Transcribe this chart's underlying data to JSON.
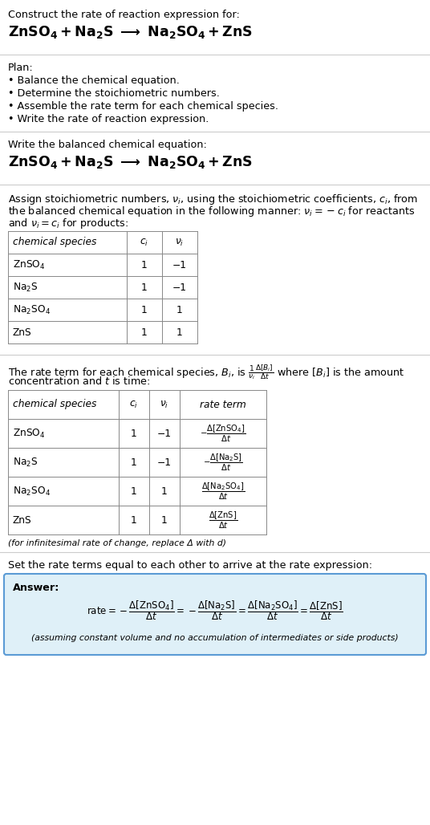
{
  "bg_color": "#ffffff",
  "title_line1": "Construct the rate of reaction expression for:",
  "eq_display": "ZnSO_4 + Na_2S \\longrightarrow Na_2SO_4 + ZnS",
  "plan_header": "Plan:",
  "plan_bullets": [
    "• Balance the chemical equation.",
    "• Determine the stoichiometric numbers.",
    "• Assemble the rate term for each chemical species.",
    "• Write the rate of reaction expression."
  ],
  "balanced_header": "Write the balanced chemical equation:",
  "stoich_para": "Assign stoichiometric numbers, $\\nu_i$, using the stoichiometric coefficients, $c_i$, from the balanced chemical equation in the following manner: $\\nu_i = -c_i$ for reactants and $\\nu_i = c_i$ for products:",
  "table1_species": [
    "$\\mathregular{ZnSO_4}$",
    "$\\mathregular{Na_2S}$",
    "$\\mathregular{Na_2SO_4}$",
    "ZnS"
  ],
  "table1_ci": [
    "1",
    "1",
    "1",
    "1"
  ],
  "table1_vi": [
    "−1",
    "−1",
    "1",
    "1"
  ],
  "rate_para_1": "The rate term for each chemical species, $B_i$, is $\\dfrac{1}{\\nu_i}\\dfrac{\\Delta[B_i]}{\\Delta t}$ where $[B_i]$ is the amount",
  "rate_para_2": "concentration and $t$ is time:",
  "table2_species": [
    "$\\mathregular{ZnSO_4}$",
    "$\\mathregular{Na_2S}$",
    "$\\mathregular{Na_2SO_4}$",
    "ZnS"
  ],
  "table2_ci": [
    "1",
    "1",
    "1",
    "1"
  ],
  "table2_vi": [
    "−1",
    "−1",
    "1",
    "1"
  ],
  "table2_rate": [
    "$-\\dfrac{\\Delta[\\mathrm{ZnSO_4}]}{\\Delta t}$",
    "$-\\dfrac{\\Delta[\\mathrm{Na_2S}]}{\\Delta t}$",
    "$\\dfrac{\\Delta[\\mathrm{Na_2SO_4}]}{\\Delta t}$",
    "$\\dfrac{\\Delta[\\mathrm{ZnS}]}{\\Delta t}$"
  ],
  "infinitesimal_note": "(for infinitesimal rate of change, replace Δ with d)",
  "set_equal_text": "Set the rate terms equal to each other to arrive at the rate expression:",
  "answer_label": "Answer:",
  "answer_box_bg": "#dff0f8",
  "answer_box_border": "#5b9bd5",
  "rate_expr": "$\\mathrm{rate} = -\\dfrac{\\Delta[\\mathrm{ZnSO_4}]}{\\Delta t} = -\\dfrac{\\Delta[\\mathrm{Na_2S}]}{\\Delta t} = \\dfrac{\\Delta[\\mathrm{Na_2SO_4}]}{\\Delta t} = \\dfrac{\\Delta[\\mathrm{ZnS}]}{\\Delta t}$",
  "footer_note": "(assuming constant volume and no accumulation of intermediates or side products)",
  "divider_color": "#cccccc",
  "table_line_color": "#888888"
}
